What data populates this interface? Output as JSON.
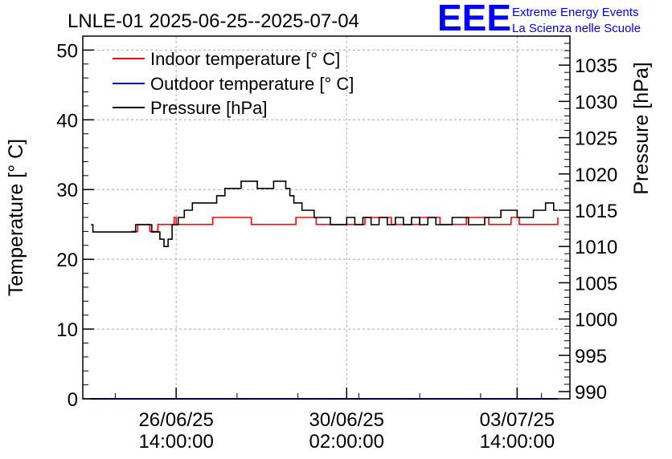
{
  "header": {
    "title": "LNLE-01 2025-06-25--2025-07-04",
    "logo_mark": "EEE",
    "logo_line1": "Extreme Energy Events",
    "logo_line2": "La Scienza nelle Scuole"
  },
  "colors": {
    "indoor": "#ff0000",
    "outdoor": "#0000ff",
    "pressure": "#000000",
    "logo": "#0000ff",
    "grid": "#aaaaaa"
  },
  "chart_data": {
    "type": "line",
    "x_type": "datetime",
    "xlim": [
      "2025-06-24 16:00",
      "2025-07-04 16:00"
    ],
    "x_ticks": [
      "2025-06-26 14:00",
      "2025-06-30 02:00",
      "2025-07-03 14:00"
    ],
    "x_tick_labels": [
      [
        "26/06/25",
        "14:00:00"
      ],
      [
        "30/06/25",
        "02:00:00"
      ],
      [
        "03/07/25",
        "14:00:00"
      ]
    ],
    "left_axis": {
      "label": "Temperature [° C]",
      "ylim": [
        0,
        52
      ],
      "ticks": [
        "0",
        "10",
        "20",
        "30",
        "40",
        "50"
      ]
    },
    "right_axis": {
      "label": "Pressure [hPa]",
      "ylim": [
        989,
        1039
      ],
      "ticks": [
        "990",
        "995",
        "1000",
        "1005",
        "1010",
        "1015",
        "1020",
        "1025",
        "1030",
        "1035"
      ]
    },
    "grid": true,
    "legend_position": "top-left",
    "series": [
      {
        "name": "Indoor temperature [° C]",
        "axis": "left",
        "color": "#ff0000",
        "x": [
          "2025-06-25 16:00",
          "2025-06-25 18:00",
          "2025-06-25 19:00",
          "2025-06-26 00:00",
          "2025-06-26 01:00",
          "2025-06-26 04:00",
          "2025-06-26 05:00",
          "2025-06-26 12:00",
          "2025-06-26 13:00",
          "2025-06-26 14:00",
          "2025-06-26 16:00",
          "2025-06-27 07:00",
          "2025-06-27 08:00",
          "2025-06-28 02:00",
          "2025-06-28 03:00",
          "2025-06-29 00:00",
          "2025-06-29 01:00",
          "2025-06-29 10:00",
          "2025-06-29 11:00",
          "2025-06-30 10:00",
          "2025-06-30 11:00",
          "2025-06-30 23:00",
          "2025-07-01 00:00",
          "2025-07-01 13:00",
          "2025-07-01 14:00",
          "2025-07-01 23:00",
          "2025-07-02 00:00",
          "2025-07-02 12:00",
          "2025-07-02 13:00",
          "2025-07-02 23:00",
          "2025-07-03 00:00",
          "2025-07-03 10:00",
          "2025-07-03 11:00",
          "2025-07-03 14:00",
          "2025-07-03 15:00",
          "2025-07-03 22:00",
          "2025-07-03 23:00",
          "2025-07-04 09:00",
          "2025-07-04 10:00"
        ],
        "y": [
          24,
          24,
          25,
          25,
          24,
          24,
          25,
          25,
          26,
          25,
          25,
          25,
          26,
          26,
          25,
          25,
          26,
          26,
          25,
          25,
          26,
          26,
          25,
          25,
          26,
          26,
          25,
          25,
          26,
          26,
          25,
          25,
          26,
          26,
          25,
          25,
          25,
          25,
          26
        ]
      },
      {
        "name": "Outdoor temperature [° C]",
        "axis": "left",
        "color": "#0000ff",
        "x": [
          "2025-06-24 20:00",
          "2025-07-04 10:00"
        ],
        "y": [
          0,
          0
        ]
      },
      {
        "name": "Pressure [hPa]",
        "axis": "right",
        "color": "#000000",
        "x": [
          "2025-06-24 20:00",
          "2025-06-24 21:00",
          "2025-06-25 17:00",
          "2025-06-25 18:00",
          "2025-06-26 00:00",
          "2025-06-26 02:00",
          "2025-06-26 04:00",
          "2025-06-26 06:00",
          "2025-06-26 08:00",
          "2025-06-26 10:00",
          "2025-06-26 12:00",
          "2025-06-26 15:00",
          "2025-06-26 18:00",
          "2025-06-26 22:00",
          "2025-06-27 02:00",
          "2025-06-27 06:00",
          "2025-06-27 10:00",
          "2025-06-27 14:00",
          "2025-06-27 18:00",
          "2025-06-27 22:00",
          "2025-06-28 02:00",
          "2025-06-28 06:00",
          "2025-06-28 10:00",
          "2025-06-28 14:00",
          "2025-06-28 18:00",
          "2025-06-28 20:00",
          "2025-06-28 22:00",
          "2025-06-29 00:00",
          "2025-06-29 04:00",
          "2025-06-29 08:00",
          "2025-06-29 10:00",
          "2025-06-29 14:00",
          "2025-06-29 18:00",
          "2025-06-29 22:00",
          "2025-06-30 02:00",
          "2025-06-30 06:00",
          "2025-06-30 10:00",
          "2025-06-30 14:00",
          "2025-06-30 18:00",
          "2025-06-30 22:00",
          "2025-07-01 02:00",
          "2025-07-01 06:00",
          "2025-07-01 10:00",
          "2025-07-01 14:00",
          "2025-07-01 18:00",
          "2025-07-01 22:00",
          "2025-07-02 02:00",
          "2025-07-02 06:00",
          "2025-07-02 10:00",
          "2025-07-02 14:00",
          "2025-07-02 18:00",
          "2025-07-02 22:00",
          "2025-07-03 02:00",
          "2025-07-03 06:00",
          "2025-07-03 10:00",
          "2025-07-03 14:00",
          "2025-07-03 18:00",
          "2025-07-03 22:00",
          "2025-07-04 02:00",
          "2025-07-04 04:00",
          "2025-07-04 06:00",
          "2025-07-04 08:00",
          "2025-07-04 10:00"
        ],
        "y": [
          1013,
          1012,
          1012,
          1013,
          1013,
          1012,
          1012,
          1011,
          1010,
          1011,
          1013,
          1014,
          1015,
          1016,
          1016,
          1016,
          1017,
          1018,
          1018,
          1019,
          1019,
          1018,
          1018,
          1019,
          1019,
          1018,
          1017,
          1016,
          1015,
          1015,
          1014,
          1014,
          1013,
          1013,
          1014,
          1013,
          1014,
          1013,
          1014,
          1013,
          1014,
          1013,
          1014,
          1013,
          1014,
          1013,
          1013,
          1014,
          1014,
          1013,
          1013,
          1014,
          1014,
          1015,
          1015,
          1014,
          1014,
          1015,
          1015,
          1016,
          1016,
          1015,
          1015
        ]
      }
    ]
  }
}
